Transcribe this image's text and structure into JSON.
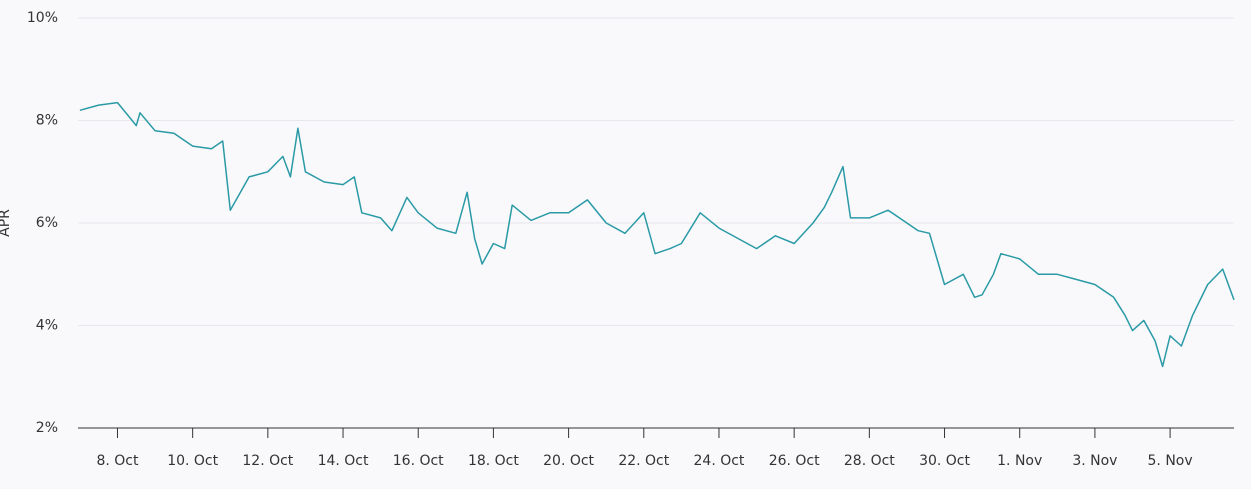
{
  "chart_data": {
    "type": "line",
    "y_label": "APR",
    "x": [
      7.0,
      7.5,
      8.0,
      8.5,
      8.6,
      9.0,
      9.5,
      10.0,
      10.5,
      10.8,
      11.0,
      11.5,
      12.0,
      12.4,
      12.6,
      12.8,
      13.0,
      13.5,
      14.0,
      14.3,
      14.5,
      15.0,
      15.3,
      15.7,
      16.0,
      16.5,
      17.0,
      17.3,
      17.5,
      17.7,
      18.0,
      18.3,
      18.5,
      19.0,
      19.5,
      20.0,
      20.5,
      21.0,
      21.5,
      22.0,
      22.3,
      22.7,
      23.0,
      23.5,
      24.0,
      24.5,
      25.0,
      25.5,
      26.0,
      26.5,
      26.8,
      27.0,
      27.3,
      27.5,
      28.0,
      28.5,
      29.0,
      29.3,
      29.6,
      30.0,
      30.5,
      30.8,
      31.0,
      31.3,
      31.5,
      32.0,
      32.5,
      33.0,
      33.5,
      34.0,
      34.5,
      34.8,
      35.0,
      35.3,
      35.6,
      35.8,
      36.0,
      36.3,
      36.6,
      37.0,
      37.4,
      37.7
    ],
    "series": [
      {
        "name": "APR",
        "color": "#2a9aa6",
        "values": [
          8.2,
          8.3,
          8.35,
          7.9,
          8.15,
          7.8,
          7.75,
          7.5,
          7.45,
          7.6,
          6.25,
          6.9,
          7.0,
          7.3,
          6.9,
          7.85,
          7.0,
          6.8,
          6.75,
          6.9,
          6.2,
          6.1,
          5.85,
          6.5,
          6.2,
          5.9,
          5.8,
          6.6,
          5.7,
          5.2,
          5.6,
          5.5,
          6.35,
          6.05,
          6.2,
          6.2,
          6.45,
          6.0,
          5.8,
          6.2,
          5.4,
          5.5,
          5.6,
          6.2,
          5.9,
          5.7,
          5.5,
          5.75,
          5.6,
          6.0,
          6.3,
          6.6,
          7.1,
          6.1,
          6.1,
          6.25,
          6.0,
          5.85,
          5.8,
          4.8,
          5.0,
          4.55,
          4.6,
          5.0,
          5.4,
          5.3,
          5.0,
          5.0,
          4.9,
          4.8,
          4.55,
          4.2,
          3.9,
          4.1,
          3.7,
          3.2,
          3.8,
          3.6,
          4.2,
          4.8,
          5.1,
          4.5
        ]
      }
    ],
    "xlim": [
      6.95,
      37.7
    ],
    "xticks": [
      {
        "value": 8,
        "label": "8. Oct"
      },
      {
        "value": 10,
        "label": "10. Oct"
      },
      {
        "value": 12,
        "label": "12. Oct"
      },
      {
        "value": 14,
        "label": "14. Oct"
      },
      {
        "value": 16,
        "label": "16. Oct"
      },
      {
        "value": 18,
        "label": "18. Oct"
      },
      {
        "value": 20,
        "label": "20. Oct"
      },
      {
        "value": 22,
        "label": "22. Oct"
      },
      {
        "value": 24,
        "label": "24. Oct"
      },
      {
        "value": 26,
        "label": "26. Oct"
      },
      {
        "value": 28,
        "label": "28. Oct"
      },
      {
        "value": 30,
        "label": "30. Oct"
      },
      {
        "value": 32,
        "label": "1. Nov"
      },
      {
        "value": 34,
        "label": "3. Nov"
      },
      {
        "value": 36,
        "label": "5. Nov"
      }
    ],
    "ylim": [
      2,
      10
    ],
    "yticks": [
      {
        "value": 2,
        "label": "2%"
      },
      {
        "value": 4,
        "label": "4%"
      },
      {
        "value": 6,
        "label": "6%"
      },
      {
        "value": 8,
        "label": "8%"
      },
      {
        "value": 10,
        "label": "10%"
      }
    ],
    "grid": true
  }
}
